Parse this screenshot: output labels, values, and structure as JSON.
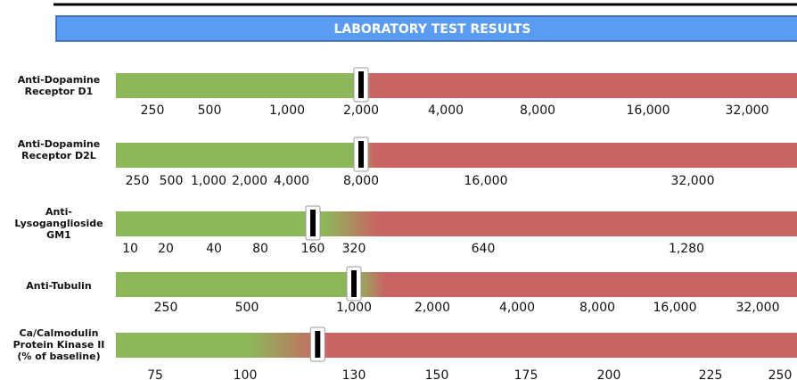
{
  "header": {
    "title": "LABORATORY TEST RESULTS"
  },
  "chart_data": [
    {
      "type": "gauge",
      "title_lines": [
        "Anti-Dopamine",
        "Receptor D1"
      ],
      "value": 2000,
      "xticks": [
        {
          "value": 250,
          "label": "250"
        },
        {
          "value": 500,
          "label": "500"
        },
        {
          "value": 1000,
          "label": "1,000"
        },
        {
          "value": 2000,
          "label": "2,000"
        },
        {
          "value": 4000,
          "label": "4,000"
        },
        {
          "value": 8000,
          "label": "8,000"
        },
        {
          "value": 16000,
          "label": "16,000"
        },
        {
          "value": 32000,
          "label": "32,000"
        }
      ]
    },
    {
      "type": "gauge",
      "title_lines": [
        "Anti-Dopamine",
        "Receptor D2L"
      ],
      "value": 8000,
      "xticks": [
        {
          "value": 250,
          "label": "250"
        },
        {
          "value": 500,
          "label": "500"
        },
        {
          "value": 1000,
          "label": "1,000"
        },
        {
          "value": 2000,
          "label": "2,000"
        },
        {
          "value": 4000,
          "label": "4,000"
        },
        {
          "value": 8000,
          "label": "8,000"
        },
        {
          "value": 16000,
          "label": "16,000"
        },
        {
          "value": 32000,
          "label": "32,000"
        }
      ]
    },
    {
      "type": "gauge",
      "title_lines": [
        "Anti-",
        "Lysoganglioside",
        "GM1"
      ],
      "value": 160,
      "xticks": [
        {
          "value": 10,
          "label": "10"
        },
        {
          "value": 20,
          "label": "20"
        },
        {
          "value": 40,
          "label": "40"
        },
        {
          "value": 80,
          "label": "80"
        },
        {
          "value": 160,
          "label": "160"
        },
        {
          "value": 320,
          "label": "320"
        },
        {
          "value": 640,
          "label": "640"
        },
        {
          "value": 1280,
          "label": "1,280"
        }
      ]
    },
    {
      "type": "gauge",
      "title_lines": [
        "Anti-Tubulin"
      ],
      "value": 1000,
      "xticks": [
        {
          "value": 250,
          "label": "250"
        },
        {
          "value": 500,
          "label": "500"
        },
        {
          "value": 1000,
          "label": "1,000"
        },
        {
          "value": 2000,
          "label": "2,000"
        },
        {
          "value": 4000,
          "label": "4,000"
        },
        {
          "value": 8000,
          "label": "8,000"
        },
        {
          "value": 16000,
          "label": "16,000"
        },
        {
          "value": 32000,
          "label": "32,000"
        }
      ]
    },
    {
      "type": "gauge",
      "title_lines": [
        "Ca/Calmodulin",
        "Protein Kinase II",
        "(% of baseline)"
      ],
      "value": 120,
      "xticks": [
        {
          "value": 75,
          "label": "75"
        },
        {
          "value": 100,
          "label": "100"
        },
        {
          "value": 130,
          "label": "130"
        },
        {
          "value": 150,
          "label": "150"
        },
        {
          "value": 175,
          "label": "175"
        },
        {
          "value": 200,
          "label": "200"
        },
        {
          "value": 225,
          "label": "225"
        },
        {
          "value": 250,
          "label": "250"
        }
      ]
    }
  ]
}
